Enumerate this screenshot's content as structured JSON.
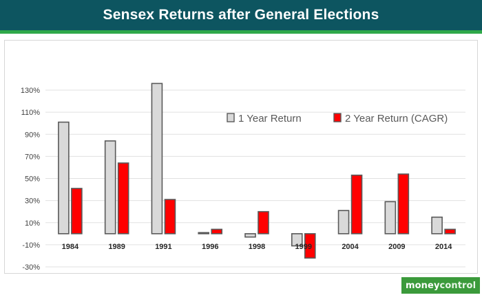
{
  "header": {
    "title": "Sensex Returns after General Elections"
  },
  "brand": {
    "logo_text_a": "money",
    "logo_text_b": "control"
  },
  "colors": {
    "header_bg": "#0d5560",
    "accent": "#2fa84a",
    "series1_fill": "#d9d9d9",
    "series2_fill": "#ff0000",
    "bar_outline": "#595959"
  },
  "chart_data": {
    "type": "bar",
    "title": "",
    "xlabel": "",
    "ylabel": "",
    "categories": [
      "1984",
      "1989",
      "1991",
      "1996",
      "1998",
      "1999",
      "2004",
      "2009",
      "2014"
    ],
    "series": [
      {
        "name": "1 Year Return",
        "values": [
          101,
          84,
          136,
          1,
          -3,
          -11,
          21,
          29,
          15
        ]
      },
      {
        "name": "2 Year Return (CAGR)",
        "values": [
          41,
          64,
          31,
          4,
          20,
          -22,
          53,
          54,
          4
        ]
      }
    ],
    "y_ticks": [
      "130%",
      "110%",
      "90%",
      "70%",
      "50%",
      "30%",
      "10%",
      "-10%",
      "-30%"
    ],
    "ylim": [
      -30,
      140
    ],
    "grid": true,
    "legend_position": "top-right"
  }
}
